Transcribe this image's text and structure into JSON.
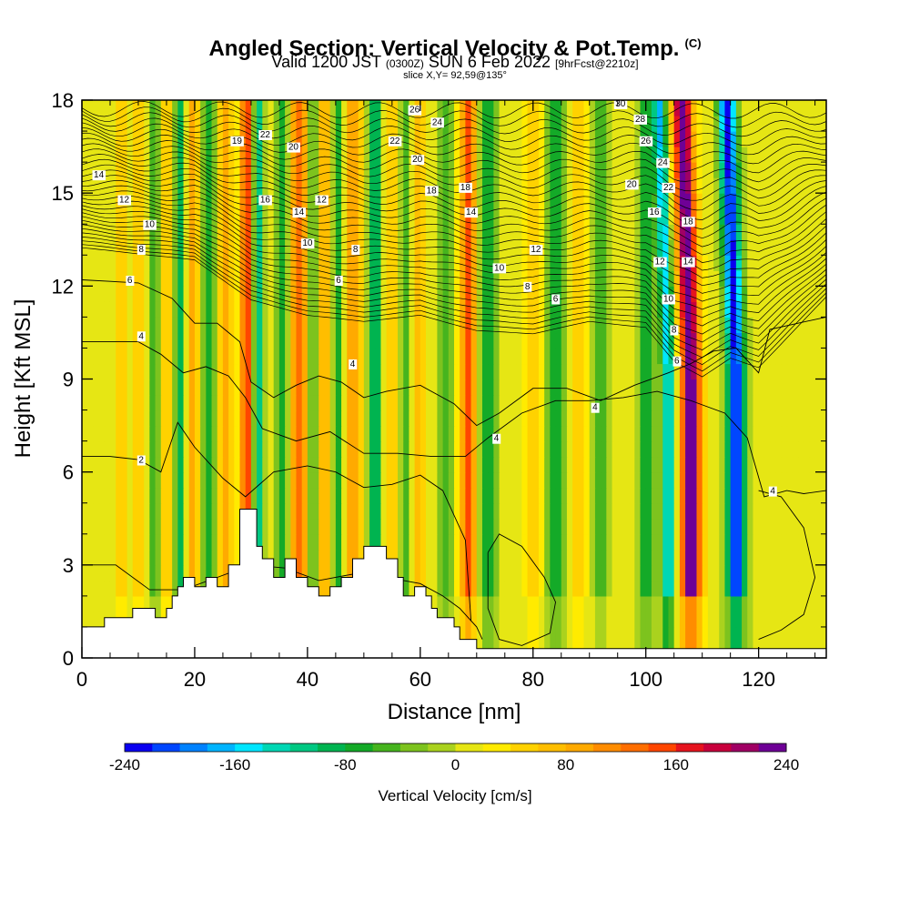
{
  "header": {
    "title": "Angled Section: Vertical Velocity & Pot.Temp.",
    "title_mark": "(C)",
    "valid_prefix": "Valid 1200 JST",
    "valid_utc": "(0300Z)",
    "valid_date": "SUN 6 Feb 2022",
    "forecast": "[9hrFcst@2210z]",
    "slice": "slice X,Y= 92,59@135°"
  },
  "chart_data": {
    "type": "heatmap",
    "xlabel": "Distance [nm]",
    "ylabel": "Height [Kft MSL]",
    "xlim": [
      0,
      132
    ],
    "ylim": [
      0,
      18
    ],
    "xticks": [
      "0",
      "20",
      "40",
      "60",
      "80",
      "100",
      "120"
    ],
    "yticks": [
      "0",
      "3",
      "6",
      "9",
      "12",
      "15",
      "18"
    ],
    "field": "Vertical Velocity [cm/s]",
    "colorbar": {
      "title": "Vertical Velocity [cm/s]",
      "min": -240,
      "max": 240,
      "step": 20,
      "labels": [
        "-240",
        "-160",
        "-80",
        "0",
        "80",
        "160",
        "240"
      ],
      "colors": [
        "#0a00f0",
        "#0046ff",
        "#0082ff",
        "#00b4ff",
        "#00e6ff",
        "#00d7b4",
        "#00c882",
        "#00b450",
        "#14aa28",
        "#46b41e",
        "#7dc31e",
        "#aad21e",
        "#e6e614",
        "#ffeb00",
        "#ffd200",
        "#ffbe00",
        "#ffaa00",
        "#ff8c00",
        "#ff6e00",
        "#ff4600",
        "#e6141e",
        "#c8003c",
        "#a00064",
        "#6e0096"
      ]
    },
    "updraft_cores": [
      {
        "x": 7,
        "w": 0.8,
        "cms": 45
      },
      {
        "x": 10,
        "w": 0.8,
        "cms": 55
      },
      {
        "x": 15,
        "w": 1.0,
        "cms": 50
      },
      {
        "x": 19.5,
        "w": 1.3,
        "cms": 75
      },
      {
        "x": 25.5,
        "w": 1.3,
        "cms": 85
      },
      {
        "x": 29.5,
        "w": 1.4,
        "cms": 150
      },
      {
        "x": 38.5,
        "w": 1.6,
        "cms": 120
      },
      {
        "x": 43,
        "w": 1.3,
        "cms": 70
      },
      {
        "x": 48,
        "w": 1.5,
        "cms": 100
      },
      {
        "x": 55,
        "w": 1.3,
        "cms": 55
      },
      {
        "x": 59.5,
        "w": 1.3,
        "cms": 65
      },
      {
        "x": 68.5,
        "w": 1.4,
        "cms": 150
      },
      {
        "x": 80,
        "w": 1.5,
        "cms": 45
      },
      {
        "x": 88,
        "w": 1.5,
        "cms": 40
      },
      {
        "x": 108,
        "w": 1.8,
        "cms": 230
      }
    ],
    "downdraft_cores": [
      {
        "x": 13,
        "w": 0.9,
        "cms": -70
      },
      {
        "x": 17.5,
        "w": 1.0,
        "cms": -100
      },
      {
        "x": 22.5,
        "w": 1.2,
        "cms": -90
      },
      {
        "x": 31,
        "w": 1.0,
        "cms": -170
      },
      {
        "x": 35.5,
        "w": 1.3,
        "cms": -80
      },
      {
        "x": 41,
        "w": 1.0,
        "cms": -80
      },
      {
        "x": 45.5,
        "w": 1.0,
        "cms": -90
      },
      {
        "x": 52,
        "w": 1.2,
        "cms": -110
      },
      {
        "x": 57.5,
        "w": 1.1,
        "cms": -70
      },
      {
        "x": 64.5,
        "w": 1.2,
        "cms": -70
      },
      {
        "x": 72,
        "w": 1.4,
        "cms": -100
      },
      {
        "x": 84,
        "w": 1.5,
        "cms": -90
      },
      {
        "x": 92,
        "w": 1.4,
        "cms": -60
      },
      {
        "x": 100,
        "w": 1.5,
        "cms": -80
      },
      {
        "x": 104,
        "w": 1.2,
        "cms": -170
      },
      {
        "x": 116,
        "w": 1.6,
        "cms": -240
      }
    ],
    "terrain": [
      [
        0,
        1.0
      ],
      [
        4,
        1.0
      ],
      [
        4,
        1.3
      ],
      [
        9,
        1.3
      ],
      [
        9,
        1.6
      ],
      [
        13,
        1.6
      ],
      [
        13,
        1.3
      ],
      [
        15,
        1.3
      ],
      [
        15,
        1.6
      ],
      [
        16,
        1.6
      ],
      [
        16,
        2.0
      ],
      [
        17,
        2.0
      ],
      [
        17,
        2.3
      ],
      [
        18,
        2.3
      ],
      [
        18,
        2.6
      ],
      [
        20,
        2.6
      ],
      [
        20,
        2.3
      ],
      [
        22,
        2.3
      ],
      [
        22,
        2.6
      ],
      [
        24,
        2.6
      ],
      [
        24,
        2.3
      ],
      [
        26,
        2.3
      ],
      [
        26,
        3.0
      ],
      [
        28,
        3.0
      ],
      [
        28,
        4.8
      ],
      [
        31,
        4.8
      ],
      [
        31,
        3.6
      ],
      [
        32,
        3.6
      ],
      [
        32,
        3.2
      ],
      [
        34,
        3.2
      ],
      [
        34,
        2.6
      ],
      [
        36,
        2.6
      ],
      [
        36,
        3.2
      ],
      [
        38,
        3.2
      ],
      [
        38,
        2.6
      ],
      [
        40,
        2.6
      ],
      [
        40,
        2.3
      ],
      [
        42,
        2.3
      ],
      [
        42,
        2.0
      ],
      [
        44,
        2.0
      ],
      [
        44,
        2.3
      ],
      [
        46,
        2.3
      ],
      [
        46,
        2.6
      ],
      [
        48,
        2.6
      ],
      [
        48,
        3.2
      ],
      [
        50,
        3.2
      ],
      [
        50,
        3.6
      ],
      [
        54,
        3.6
      ],
      [
        54,
        3.2
      ],
      [
        56,
        3.2
      ],
      [
        56,
        2.6
      ],
      [
        57,
        2.6
      ],
      [
        57,
        2.0
      ],
      [
        59,
        2.0
      ],
      [
        59,
        2.3
      ],
      [
        61,
        2.3
      ],
      [
        61,
        2.0
      ],
      [
        62,
        2.0
      ],
      [
        62,
        1.6
      ],
      [
        63,
        1.6
      ],
      [
        63,
        1.3
      ],
      [
        66,
        1.3
      ],
      [
        66,
        1.0
      ],
      [
        67,
        1.0
      ],
      [
        67,
        0.6
      ],
      [
        70,
        0.6
      ],
      [
        70,
        0.3
      ],
      [
        132,
        0.3
      ]
    ],
    "isotachs": [
      {
        "label": "2",
        "points": [
          [
            0,
            3.0
          ],
          [
            6,
            3.0
          ],
          [
            12,
            2.2
          ],
          [
            18,
            2.2
          ],
          [
            24,
            2.6
          ],
          [
            30,
            3.0
          ],
          [
            36,
            2.9
          ],
          [
            42,
            2.5
          ],
          [
            48,
            2.7
          ],
          [
            54,
            2.6
          ],
          [
            60,
            2.4
          ],
          [
            64,
            2.0
          ],
          [
            67,
            1.6
          ],
          [
            70,
            1.0
          ],
          [
            71,
            0.6
          ]
        ]
      },
      {
        "label": "2",
        "points": [
          [
            0,
            6.5
          ],
          [
            5,
            6.5
          ],
          [
            10,
            6.4
          ],
          [
            14,
            6.0
          ],
          [
            17,
            7.6
          ],
          [
            20,
            6.8
          ],
          [
            25,
            5.8
          ],
          [
            29,
            5.2
          ],
          [
            34,
            6.0
          ],
          [
            40,
            6.2
          ],
          [
            45,
            6.0
          ],
          [
            50,
            5.5
          ],
          [
            55,
            5.6
          ],
          [
            60,
            5.9
          ],
          [
            64,
            5.4
          ],
          [
            68,
            3.8
          ],
          [
            69,
            1.2
          ]
        ]
      },
      {
        "label": "2",
        "points": [
          [
            72,
            3.4
          ],
          [
            74,
            4.0
          ],
          [
            78,
            3.6
          ],
          [
            82,
            2.6
          ],
          [
            84,
            1.8
          ],
          [
            83,
            0.8
          ],
          [
            78,
            0.4
          ],
          [
            74,
            0.6
          ],
          [
            72,
            1.6
          ],
          [
            72,
            3.4
          ]
        ]
      },
      {
        "label": "2",
        "points": [
          [
            120,
            5.4
          ],
          [
            124,
            5.2
          ],
          [
            128,
            4.2
          ],
          [
            130,
            2.6
          ],
          [
            128,
            1.4
          ],
          [
            124,
            0.9
          ],
          [
            120,
            0.6
          ]
        ]
      },
      {
        "label": "4",
        "points": [
          [
            0,
            10.2
          ],
          [
            10,
            10.2
          ],
          [
            14,
            9.8
          ],
          [
            18,
            9.2
          ],
          [
            22,
            9.4
          ],
          [
            26,
            9.1
          ],
          [
            29,
            8.4
          ],
          [
            32,
            7.4
          ],
          [
            38,
            7.0
          ],
          [
            44,
            7.3
          ],
          [
            50,
            6.6
          ],
          [
            56,
            6.6
          ],
          [
            62,
            6.5
          ],
          [
            68,
            6.5
          ],
          [
            72,
            7.1
          ],
          [
            78,
            7.9
          ],
          [
            84,
            8.3
          ],
          [
            90,
            8.3
          ],
          [
            96,
            8.4
          ],
          [
            102,
            8.6
          ],
          [
            108,
            8.3
          ],
          [
            114,
            7.9
          ],
          [
            118,
            7.1
          ],
          [
            121,
            5.2
          ],
          [
            125,
            5.4
          ],
          [
            128,
            5.3
          ],
          [
            132,
            5.4
          ]
        ]
      },
      {
        "label": "4",
        "points": [
          [
            0,
            12.2
          ],
          [
            10,
            12.1
          ],
          [
            16,
            11.6
          ],
          [
            20,
            10.8
          ],
          [
            24,
            10.8
          ],
          [
            28,
            10.2
          ],
          [
            30,
            8.9
          ],
          [
            34,
            8.4
          ],
          [
            38,
            8.8
          ],
          [
            42,
            9.1
          ],
          [
            46,
            8.9
          ],
          [
            50,
            8.4
          ],
          [
            54,
            8.6
          ],
          [
            60,
            8.8
          ],
          [
            66,
            8.2
          ],
          [
            70,
            7.5
          ],
          [
            74,
            7.9
          ],
          [
            80,
            8.7
          ],
          [
            86,
            8.7
          ],
          [
            92,
            8.3
          ],
          [
            98,
            8.8
          ],
          [
            104,
            9.2
          ],
          [
            108,
            9.5
          ],
          [
            112,
            9.9
          ],
          [
            116,
            10.0
          ],
          [
            120,
            9.2
          ],
          [
            122,
            10.6
          ],
          [
            132,
            11.0
          ]
        ]
      }
    ],
    "isentrope_bounds": {
      "count": 32,
      "lower": [
        [
          0,
          13.2
        ],
        [
          10,
          13.0
        ],
        [
          20,
          12.8
        ],
        [
          30,
          11.5
        ],
        [
          40,
          11.0
        ],
        [
          50,
          10.8
        ],
        [
          60,
          11.0
        ],
        [
          70,
          10.5
        ],
        [
          80,
          10.4
        ],
        [
          90,
          10.8
        ],
        [
          100,
          10.6
        ],
        [
          105,
          9.5
        ],
        [
          110,
          9.0
        ],
        [
          115,
          9.6
        ],
        [
          120,
          9.3
        ],
        [
          132,
          11.6
        ]
      ],
      "upper": [
        [
          0,
          17.8
        ],
        [
          132,
          17.8
        ]
      ]
    },
    "isentrope_labels": [
      {
        "text": "14",
        "x": 3,
        "y": 15.6
      },
      {
        "text": "12",
        "x": 7.5,
        "y": 14.8
      },
      {
        "text": "10",
        "x": 12,
        "y": 14.0
      },
      {
        "text": "8",
        "x": 10.5,
        "y": 13.2
      },
      {
        "text": "6",
        "x": 8.5,
        "y": 12.2
      },
      {
        "text": "4",
        "x": 10.5,
        "y": 10.4
      },
      {
        "text": "2",
        "x": 10.5,
        "y": 6.4
      },
      {
        "text": "19",
        "x": 27.5,
        "y": 16.7
      },
      {
        "text": "22",
        "x": 32.5,
        "y": 16.9
      },
      {
        "text": "20",
        "x": 37.5,
        "y": 16.5
      },
      {
        "text": "16",
        "x": 32.5,
        "y": 14.8
      },
      {
        "text": "14",
        "x": 38.5,
        "y": 14.4
      },
      {
        "text": "12",
        "x": 42.5,
        "y": 14.8
      },
      {
        "text": "10",
        "x": 40,
        "y": 13.4
      },
      {
        "text": "8",
        "x": 48.5,
        "y": 13.2
      },
      {
        "text": "6",
        "x": 45.5,
        "y": 12.2
      },
      {
        "text": "4",
        "x": 48,
        "y": 9.5
      },
      {
        "text": "26",
        "x": 59,
        "y": 17.7
      },
      {
        "text": "24",
        "x": 63,
        "y": 17.3
      },
      {
        "text": "22",
        "x": 55.5,
        "y": 16.7
      },
      {
        "text": "20",
        "x": 59.5,
        "y": 16.1
      },
      {
        "text": "18",
        "x": 62,
        "y": 15.1
      },
      {
        "text": "18",
        "x": 68,
        "y": 15.2
      },
      {
        "text": "14",
        "x": 69,
        "y": 14.4
      },
      {
        "text": "10",
        "x": 74,
        "y": 12.6
      },
      {
        "text": "8",
        "x": 79,
        "y": 12.0
      },
      {
        "text": "6",
        "x": 84,
        "y": 11.6
      },
      {
        "text": "12",
        "x": 80.5,
        "y": 13.2
      },
      {
        "text": "4",
        "x": 73.5,
        "y": 7.1
      },
      {
        "text": "4",
        "x": 91,
        "y": 8.1
      },
      {
        "text": "4",
        "x": 122.5,
        "y": 5.4
      },
      {
        "text": "30",
        "x": 95.5,
        "y": 17.9
      },
      {
        "text": "28",
        "x": 99,
        "y": 17.4
      },
      {
        "text": "26",
        "x": 100,
        "y": 16.7
      },
      {
        "text": "24",
        "x": 103,
        "y": 16.0
      },
      {
        "text": "22",
        "x": 104,
        "y": 15.2
      },
      {
        "text": "20",
        "x": 97.5,
        "y": 15.3
      },
      {
        "text": "16",
        "x": 101.5,
        "y": 14.4
      },
      {
        "text": "12",
        "x": 102.5,
        "y": 12.8
      },
      {
        "text": "10",
        "x": 104,
        "y": 11.6
      },
      {
        "text": "8",
        "x": 105,
        "y": 10.6
      },
      {
        "text": "6",
        "x": 105.5,
        "y": 9.6
      },
      {
        "text": "18",
        "x": 107.5,
        "y": 14.1
      },
      {
        "text": "14",
        "x": 107.5,
        "y": 12.8
      }
    ]
  }
}
